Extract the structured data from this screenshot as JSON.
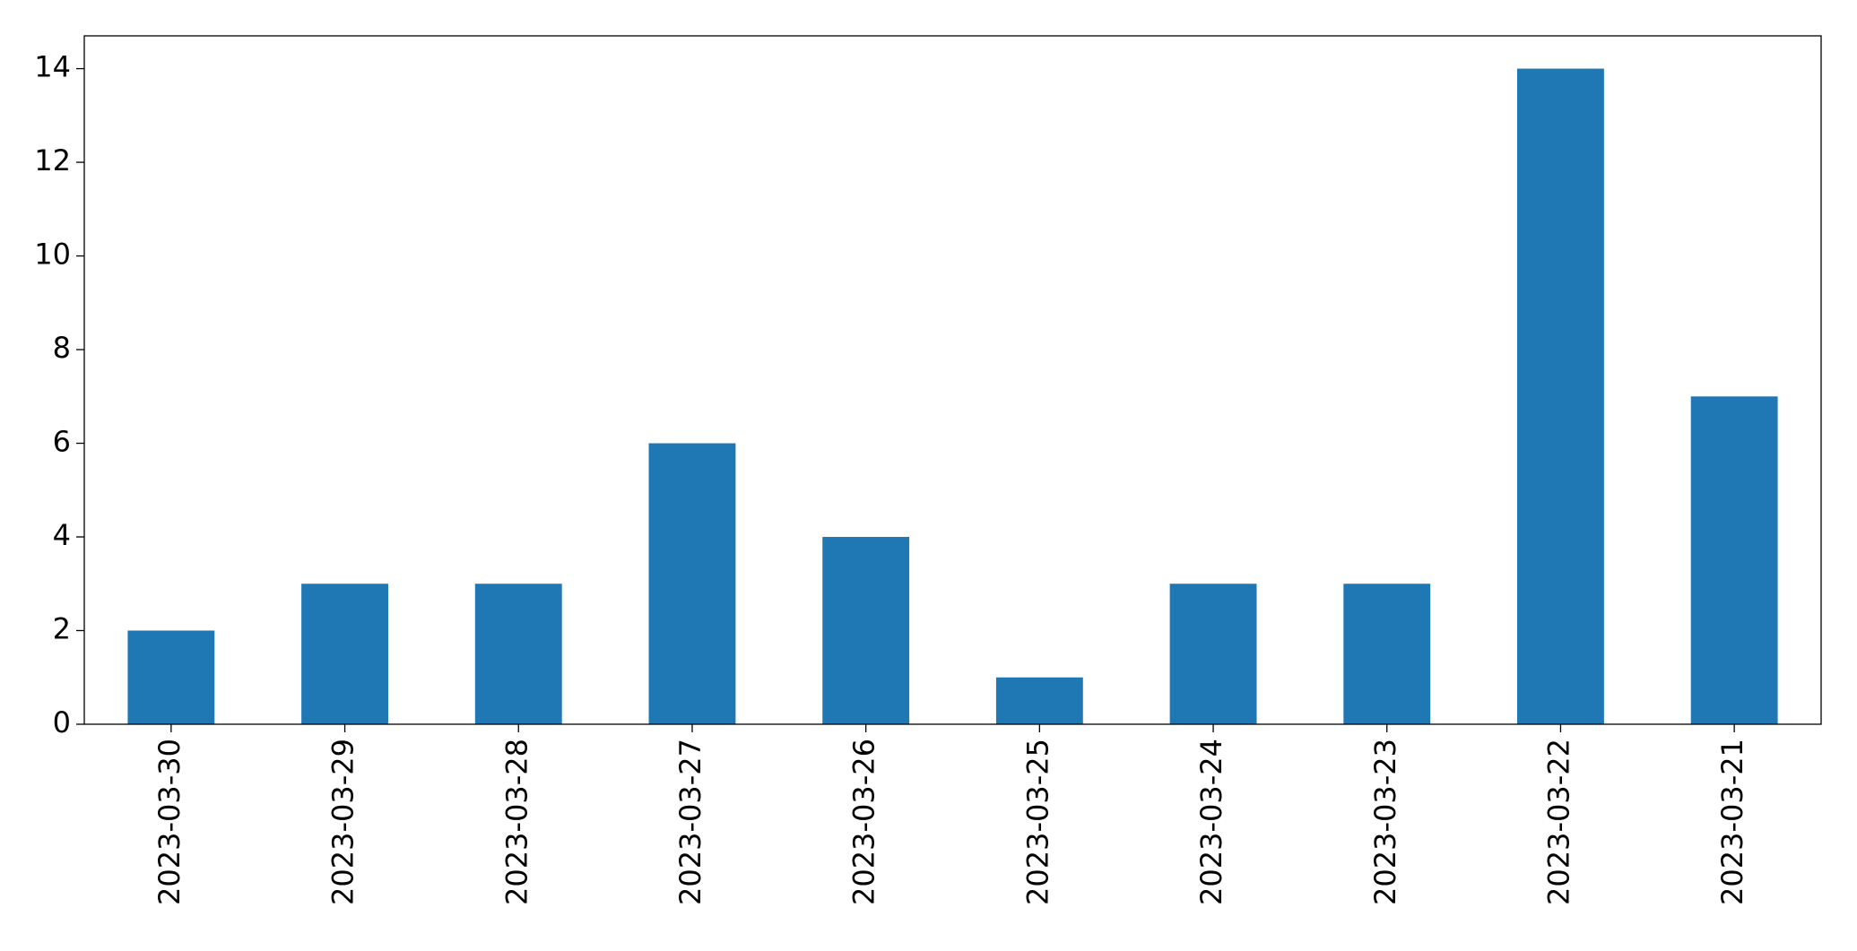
{
  "chart_data": {
    "type": "bar",
    "categories": [
      "2023-03-30",
      "2023-03-29",
      "2023-03-28",
      "2023-03-27",
      "2023-03-26",
      "2023-03-25",
      "2023-03-24",
      "2023-03-23",
      "2023-03-22",
      "2023-03-21"
    ],
    "values": [
      2,
      3,
      3,
      6,
      4,
      1,
      3,
      3,
      14,
      7
    ],
    "color": "#1f77b4",
    "ylim": [
      0,
      14.7
    ],
    "yticks": [
      0,
      2,
      4,
      6,
      8,
      10,
      12,
      14
    ],
    "grid": false
  }
}
